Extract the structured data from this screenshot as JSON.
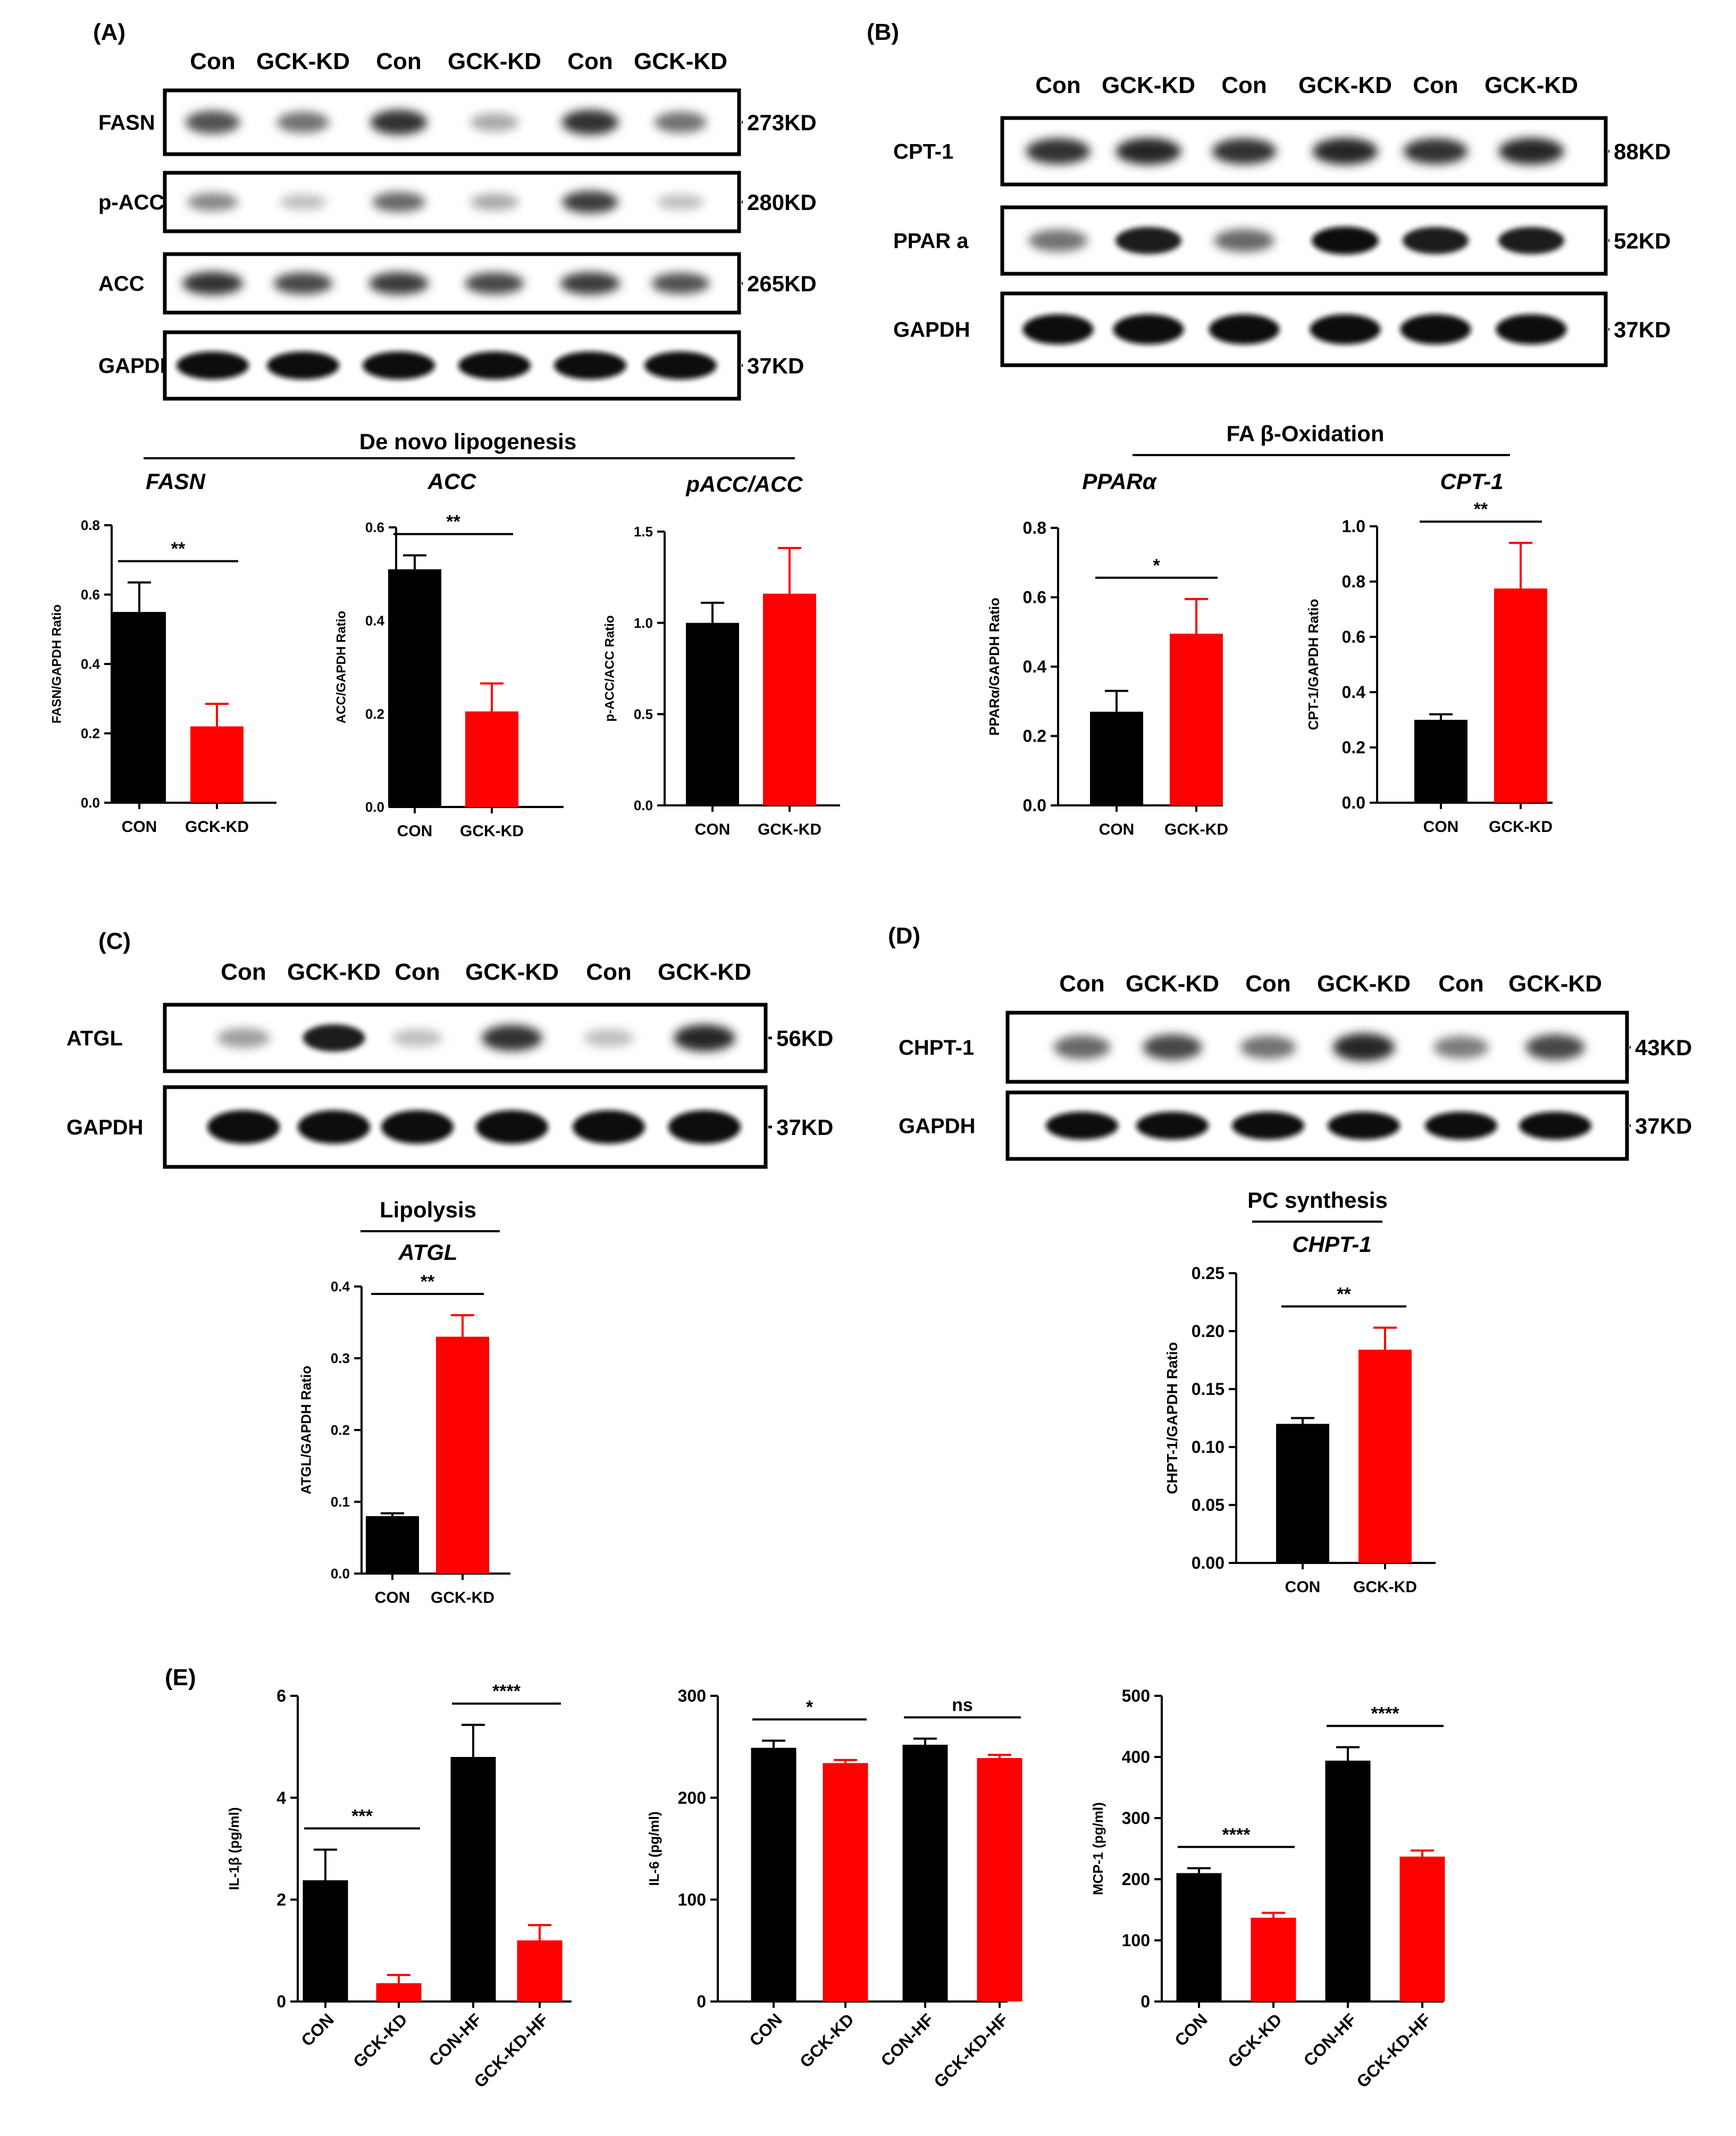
{
  "colors": {
    "con": "#000000",
    "gck": "#ff0000",
    "axis": "#000000"
  },
  "panels": {
    "A": {
      "label": "(A)",
      "lanes": [
        "Con",
        "GCK-KD",
        "Con",
        "GCK-KD",
        "Con",
        "GCK-KD"
      ],
      "blots": [
        {
          "name": "FASN",
          "kd": "273KD"
        },
        {
          "name": "p-ACC",
          "kd": "280KD"
        },
        {
          "name": "ACC",
          "kd": "265KD"
        },
        {
          "name": "GAPDH",
          "kd": "37KD"
        }
      ],
      "group_title": "De novo lipogenesis"
    },
    "B": {
      "label": "(B)",
      "lanes": [
        "Con",
        "GCK-KD",
        "Con",
        "GCK-KD",
        "Con",
        "GCK-KD"
      ],
      "blots": [
        {
          "name": "CPT-1",
          "kd": "88KD"
        },
        {
          "name": "PPAR a",
          "kd": "52KD"
        },
        {
          "name": "GAPDH",
          "kd": "37KD"
        }
      ],
      "group_title": "FA β-Oxidation"
    },
    "C": {
      "label": "(C)",
      "lanes": [
        "Con",
        "GCK-KD",
        "Con",
        "GCK-KD",
        "Con",
        "GCK-KD"
      ],
      "blots": [
        {
          "name": "ATGL",
          "kd": "56KD"
        },
        {
          "name": "GAPDH",
          "kd": "37KD"
        }
      ],
      "group_title": "Lipolysis"
    },
    "D": {
      "label": "(D)",
      "lanes": [
        "Con",
        "GCK-KD",
        "Con",
        "GCK-KD",
        "Con",
        "GCK-KD"
      ],
      "blots": [
        {
          "name": "CHPT-1",
          "kd": "43KD"
        },
        {
          "name": "GAPDH",
          "kd": "37KD"
        }
      ],
      "group_title": "PC synthesis"
    },
    "E": {
      "label": "(E)"
    }
  },
  "chart_data": [
    {
      "id": "fasn",
      "type": "bar",
      "title": "FASN",
      "ylabel": "FASN/GAPDH Ratio",
      "categories": [
        "CON",
        "GCK-KD"
      ],
      "values": [
        0.55,
        0.22
      ],
      "errors": [
        0.085,
        0.065
      ],
      "ylim": [
        0,
        0.8
      ],
      "yticks": [
        "0.0",
        "0.2",
        "0.4",
        "0.6",
        "0.8"
      ],
      "sig": [
        {
          "from": 0,
          "to": 1,
          "label": "**"
        }
      ]
    },
    {
      "id": "acc",
      "type": "bar",
      "title": "ACC",
      "ylabel": "ACC/GAPDH Ratio",
      "categories": [
        "CON",
        "GCK-KD"
      ],
      "values": [
        0.51,
        0.205
      ],
      "errors": [
        0.03,
        0.06
      ],
      "ylim": [
        0,
        0.6
      ],
      "yticks": [
        "0.0",
        "0.2",
        "0.4",
        "0.6"
      ],
      "sig": [
        {
          "from": 0,
          "to": 1,
          "label": "**"
        }
      ]
    },
    {
      "id": "pacc",
      "type": "bar",
      "title": "pACC/ACC",
      "ylabel": "p-ACC/ACC Ratio",
      "categories": [
        "CON",
        "GCK-KD"
      ],
      "values": [
        1.0,
        1.16
      ],
      "errors": [
        0.11,
        0.25
      ],
      "ylim": [
        0,
        1.5
      ],
      "yticks": [
        "0.0",
        "0.5",
        "1.0",
        "1.5"
      ],
      "sig": []
    },
    {
      "id": "ppar",
      "type": "bar",
      "title": "PPARα",
      "ylabel": "PPARα/GAPDH Ratio",
      "categories": [
        "CON",
        "GCK-KD"
      ],
      "values": [
        0.27,
        0.495
      ],
      "errors": [
        0.06,
        0.1
      ],
      "ylim": [
        0,
        0.8
      ],
      "yticks": [
        "0.0",
        "0.2",
        "0.4",
        "0.6",
        "0.8"
      ],
      "sig": [
        {
          "from": 0,
          "to": 1,
          "label": "*"
        }
      ]
    },
    {
      "id": "cpt1",
      "type": "bar",
      "title": "CPT-1",
      "ylabel": "CPT-1/GAPDH Ratio",
      "categories": [
        "CON",
        "GCK-KD"
      ],
      "values": [
        0.3,
        0.775
      ],
      "errors": [
        0.02,
        0.165
      ],
      "ylim": [
        0,
        1.0
      ],
      "yticks": [
        "0.0",
        "0.2",
        "0.4",
        "0.6",
        "0.8",
        "1.0"
      ],
      "sig": [
        {
          "from": 0,
          "to": 1,
          "label": "**"
        }
      ]
    },
    {
      "id": "atgl",
      "type": "bar",
      "title": "ATGL",
      "ylabel": "ATGL/GAPDH Ratio",
      "categories": [
        "CON",
        "GCK-KD"
      ],
      "values": [
        0.08,
        0.33
      ],
      "errors": [
        0.004,
        0.03
      ],
      "ylim": [
        0,
        0.4
      ],
      "yticks": [
        "0.0",
        "0.1",
        "0.2",
        "0.3",
        "0.4"
      ],
      "sig": [
        {
          "from": 0,
          "to": 1,
          "label": "**"
        }
      ]
    },
    {
      "id": "chpt1",
      "type": "bar",
      "title": "CHPT-1",
      "ylabel": "CHPT-1/GAPDH Ratio",
      "categories": [
        "CON",
        "GCK-KD"
      ],
      "values": [
        0.12,
        0.184
      ],
      "errors": [
        0.005,
        0.019
      ],
      "ylim": [
        0,
        0.25
      ],
      "yticks": [
        "0.00",
        "0.05",
        "0.10",
        "0.15",
        "0.20",
        "0.25"
      ],
      "sig": [
        {
          "from": 0,
          "to": 1,
          "label": "**"
        }
      ]
    },
    {
      "id": "il1b",
      "type": "bar",
      "title": "",
      "ylabel": "IL-1β (pg/ml)",
      "categories": [
        "CON",
        "GCK-KD",
        "CON-HF",
        "GCK-KD-HF"
      ],
      "values": [
        2.38,
        0.36,
        4.8,
        1.2
      ],
      "errors": [
        0.6,
        0.16,
        0.63,
        0.3
      ],
      "ylim": [
        0,
        6
      ],
      "yticks": [
        "0",
        "2",
        "4",
        "6"
      ],
      "sig": [
        {
          "from": 1,
          "to": 1,
          "label": "***"
        },
        {
          "from": 3,
          "to": 3,
          "label": "****"
        }
      ]
    },
    {
      "id": "il6",
      "type": "bar",
      "title": "",
      "ylabel": "IL-6 (pg/ml)",
      "categories": [
        "CON",
        "GCK-KD",
        "CON-HF",
        "GCK-KD-HF"
      ],
      "values": [
        249,
        234,
        252,
        239
      ],
      "errors": [
        7,
        3,
        6,
        3
      ],
      "ylim": [
        0,
        300
      ],
      "yticks": [
        "0",
        "100",
        "200",
        "300"
      ],
      "sig": [
        {
          "from": 0,
          "to": 1,
          "label": "*"
        },
        {
          "from": 2,
          "to": 3,
          "label": "ns"
        }
      ]
    },
    {
      "id": "mcp1",
      "type": "bar",
      "title": "",
      "ylabel": "MCP-1 (pg/ml)",
      "categories": [
        "CON",
        "GCK-KD",
        "CON-HF",
        "GCK-KD-HF"
      ],
      "values": [
        210,
        137,
        394,
        237
      ],
      "errors": [
        8,
        8,
        22,
        10
      ],
      "ylim": [
        0,
        500
      ],
      "yticks": [
        "0",
        "100",
        "200",
        "300",
        "400",
        "500"
      ],
      "sig": [
        {
          "from": 0,
          "to": 1,
          "label": "****"
        },
        {
          "from": 2,
          "to": 3,
          "label": "****"
        }
      ]
    }
  ]
}
